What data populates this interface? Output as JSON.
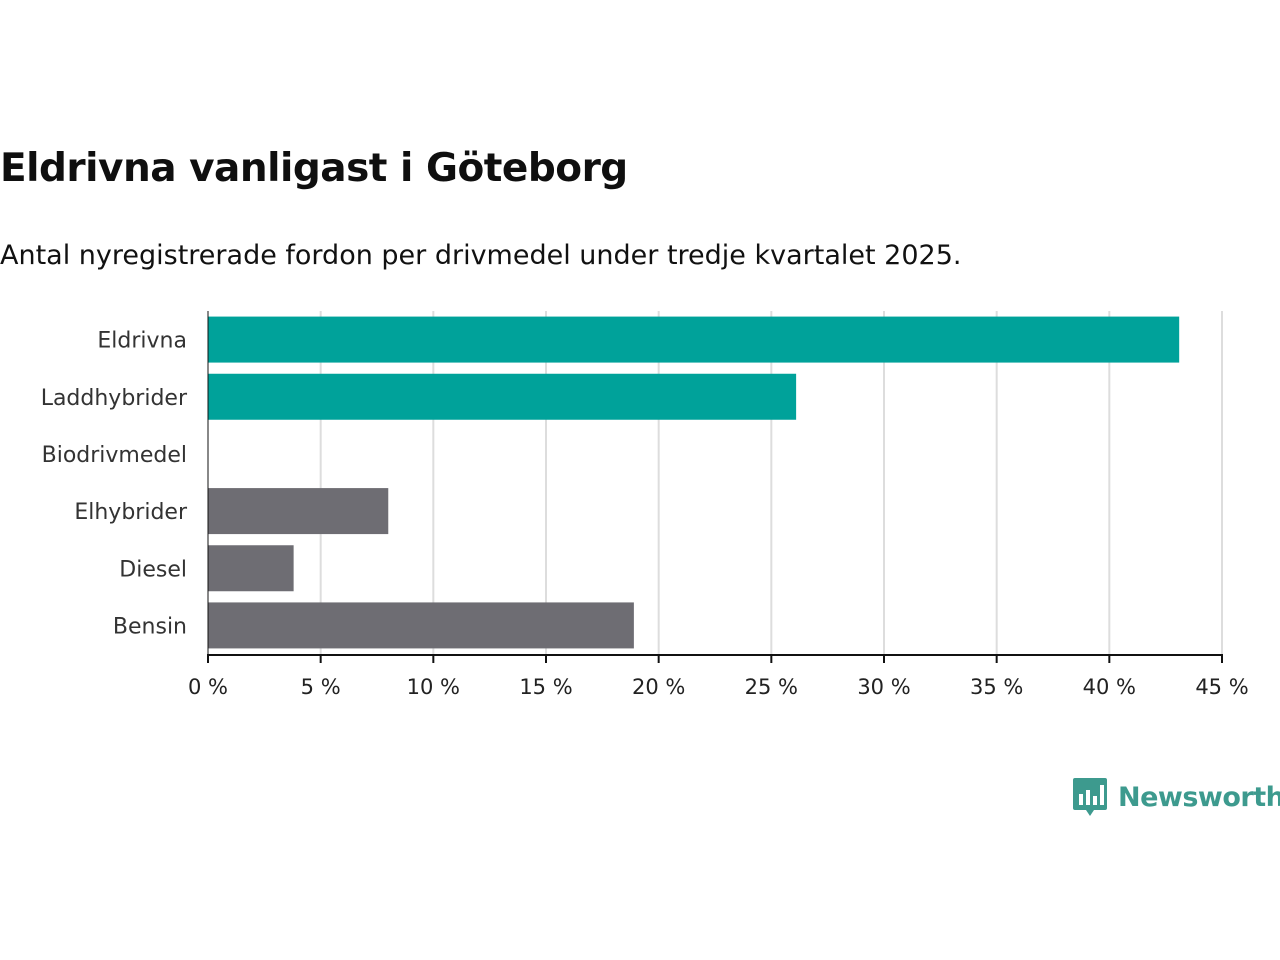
{
  "header": {
    "title": "Eldrivna vanligast i Göteborg",
    "subtitle": "Antal nyregistrerade fordon per drivmedel under tredje kvartalet 2025."
  },
  "brand": {
    "name": "Newsworthy",
    "color": "#3d9a8e"
  },
  "colors": {
    "highlight": "#00a29a",
    "muted": "#6e6d73",
    "grid": "#dddddd",
    "axis": "#111111"
  },
  "chart_data": {
    "type": "bar",
    "orientation": "horizontal",
    "title": "Eldrivna vanligast i Göteborg",
    "subtitle": "Antal nyregistrerade fordon per drivmedel under tredje kvartalet 2025.",
    "categories": [
      "Eldrivna",
      "Laddhybrider",
      "Biodrivmedel",
      "Elhybrider",
      "Diesel",
      "Bensin"
    ],
    "values": [
      43.1,
      26.1,
      0,
      8.0,
      3.8,
      18.9
    ],
    "highlight": [
      true,
      true,
      false,
      false,
      false,
      false
    ],
    "unit": "%",
    "xlim": [
      0,
      45
    ],
    "ticks": [
      0,
      5,
      10,
      15,
      20,
      25,
      30,
      35,
      40,
      45
    ],
    "tick_labels": [
      "0 %",
      "5 %",
      "10 %",
      "15 %",
      "20 %",
      "25 %",
      "30 %",
      "35 %",
      "40 %",
      "45 %"
    ],
    "xlabel": "",
    "ylabel": "",
    "grid": true
  }
}
